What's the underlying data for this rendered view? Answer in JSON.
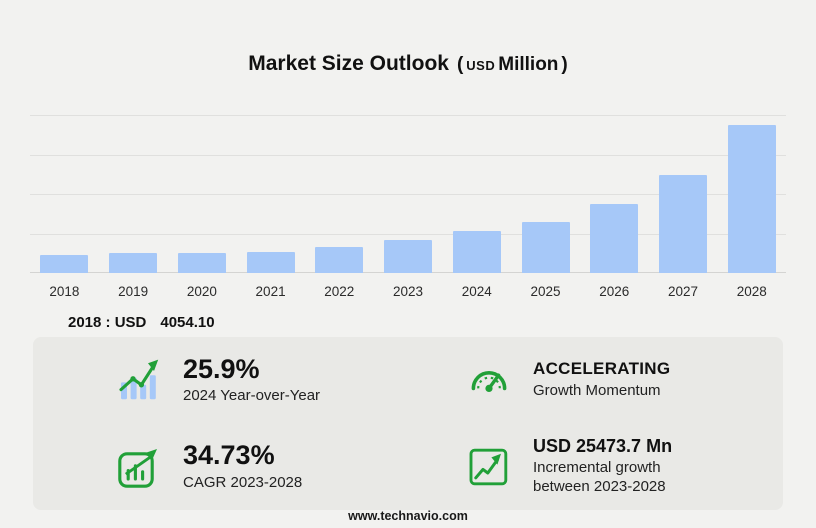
{
  "title": {
    "text": "Market Size Outlook",
    "open_paren": "(",
    "currency": "USD",
    "unit": "Million",
    "close_paren": ")"
  },
  "chart_data": {
    "type": "bar",
    "title": "Market Size Outlook (USD Million)",
    "categories": [
      "2018",
      "2019",
      "2020",
      "2021",
      "2022",
      "2023",
      "2024",
      "2025",
      "2026",
      "2027",
      "2028"
    ],
    "values": [
      4054.1,
      4450,
      4380,
      4710,
      5835,
      7406,
      9325,
      11220,
      15260,
      21770,
      32880
    ],
    "ylabel": "USD Million",
    "ylim": [
      0,
      35000
    ],
    "grid": true,
    "legend": "none",
    "bar_color": "#a6c8f8",
    "base_year_label": "2018 : USD",
    "base_year_value": "4054.10"
  },
  "stats": [
    {
      "icon": "bar-chart-trend-icon",
      "value": "25.9%",
      "label": "2024 Year-over-Year"
    },
    {
      "icon": "speedometer-icon",
      "value": "ACCELERATING",
      "label": "Growth Momentum"
    },
    {
      "icon": "cagr-chart-icon",
      "value": "34.73%",
      "label": "CAGR 2023-2028"
    },
    {
      "icon": "growth-steps-icon",
      "value": "USD 25473.7 Mn",
      "label": "Incremental growth",
      "label2": "between 2023-2028"
    }
  ],
  "footer": {
    "url": "www.technavio.com"
  },
  "colors": {
    "page_bg": "#f2f2f0",
    "panel_bg": "#e9e9e6",
    "bar": "#a6c8f8",
    "accent_green": "#21a038"
  }
}
